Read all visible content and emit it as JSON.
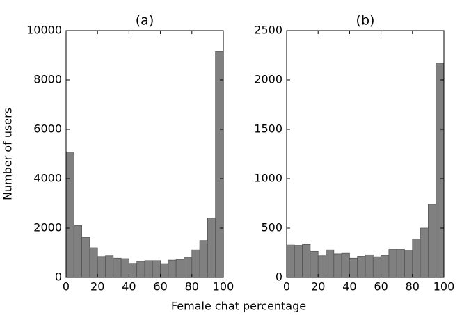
{
  "chart_data": [
    {
      "type": "histogram",
      "title": "(a)",
      "ylabel": "Number of users",
      "xlabel": "Female chat percentage",
      "bins": [
        0,
        5,
        10,
        15,
        20,
        25,
        30,
        35,
        40,
        45,
        50,
        55,
        60,
        65,
        70,
        75,
        80,
        85,
        90,
        95,
        100
      ],
      "values": [
        5080,
        2110,
        1620,
        1210,
        850,
        880,
        780,
        760,
        570,
        650,
        680,
        680,
        560,
        700,
        730,
        820,
        1120,
        1500,
        2400,
        9150
      ],
      "color": "#808080",
      "xlim": [
        0,
        100
      ],
      "xticks": [
        0,
        20,
        40,
        60,
        80,
        100
      ],
      "ylim": [
        0,
        10000
      ],
      "yticks": [
        0,
        2000,
        4000,
        6000,
        8000,
        10000
      ]
    },
    {
      "type": "histogram",
      "title": "(b)",
      "bins": [
        0,
        5,
        10,
        15,
        20,
        25,
        30,
        35,
        40,
        45,
        50,
        55,
        60,
        65,
        70,
        75,
        80,
        85,
        90,
        95,
        100
      ],
      "values": [
        330,
        325,
        335,
        265,
        220,
        280,
        240,
        245,
        195,
        215,
        230,
        210,
        225,
        285,
        285,
        270,
        390,
        500,
        740,
        2170
      ],
      "color": "#808080",
      "xlim": [
        0,
        100
      ],
      "xticks": [
        0,
        20,
        40,
        60,
        80,
        100
      ],
      "ylim": [
        0,
        2500
      ],
      "yticks": [
        0,
        500,
        1000,
        1500,
        2000,
        2500
      ]
    }
  ]
}
